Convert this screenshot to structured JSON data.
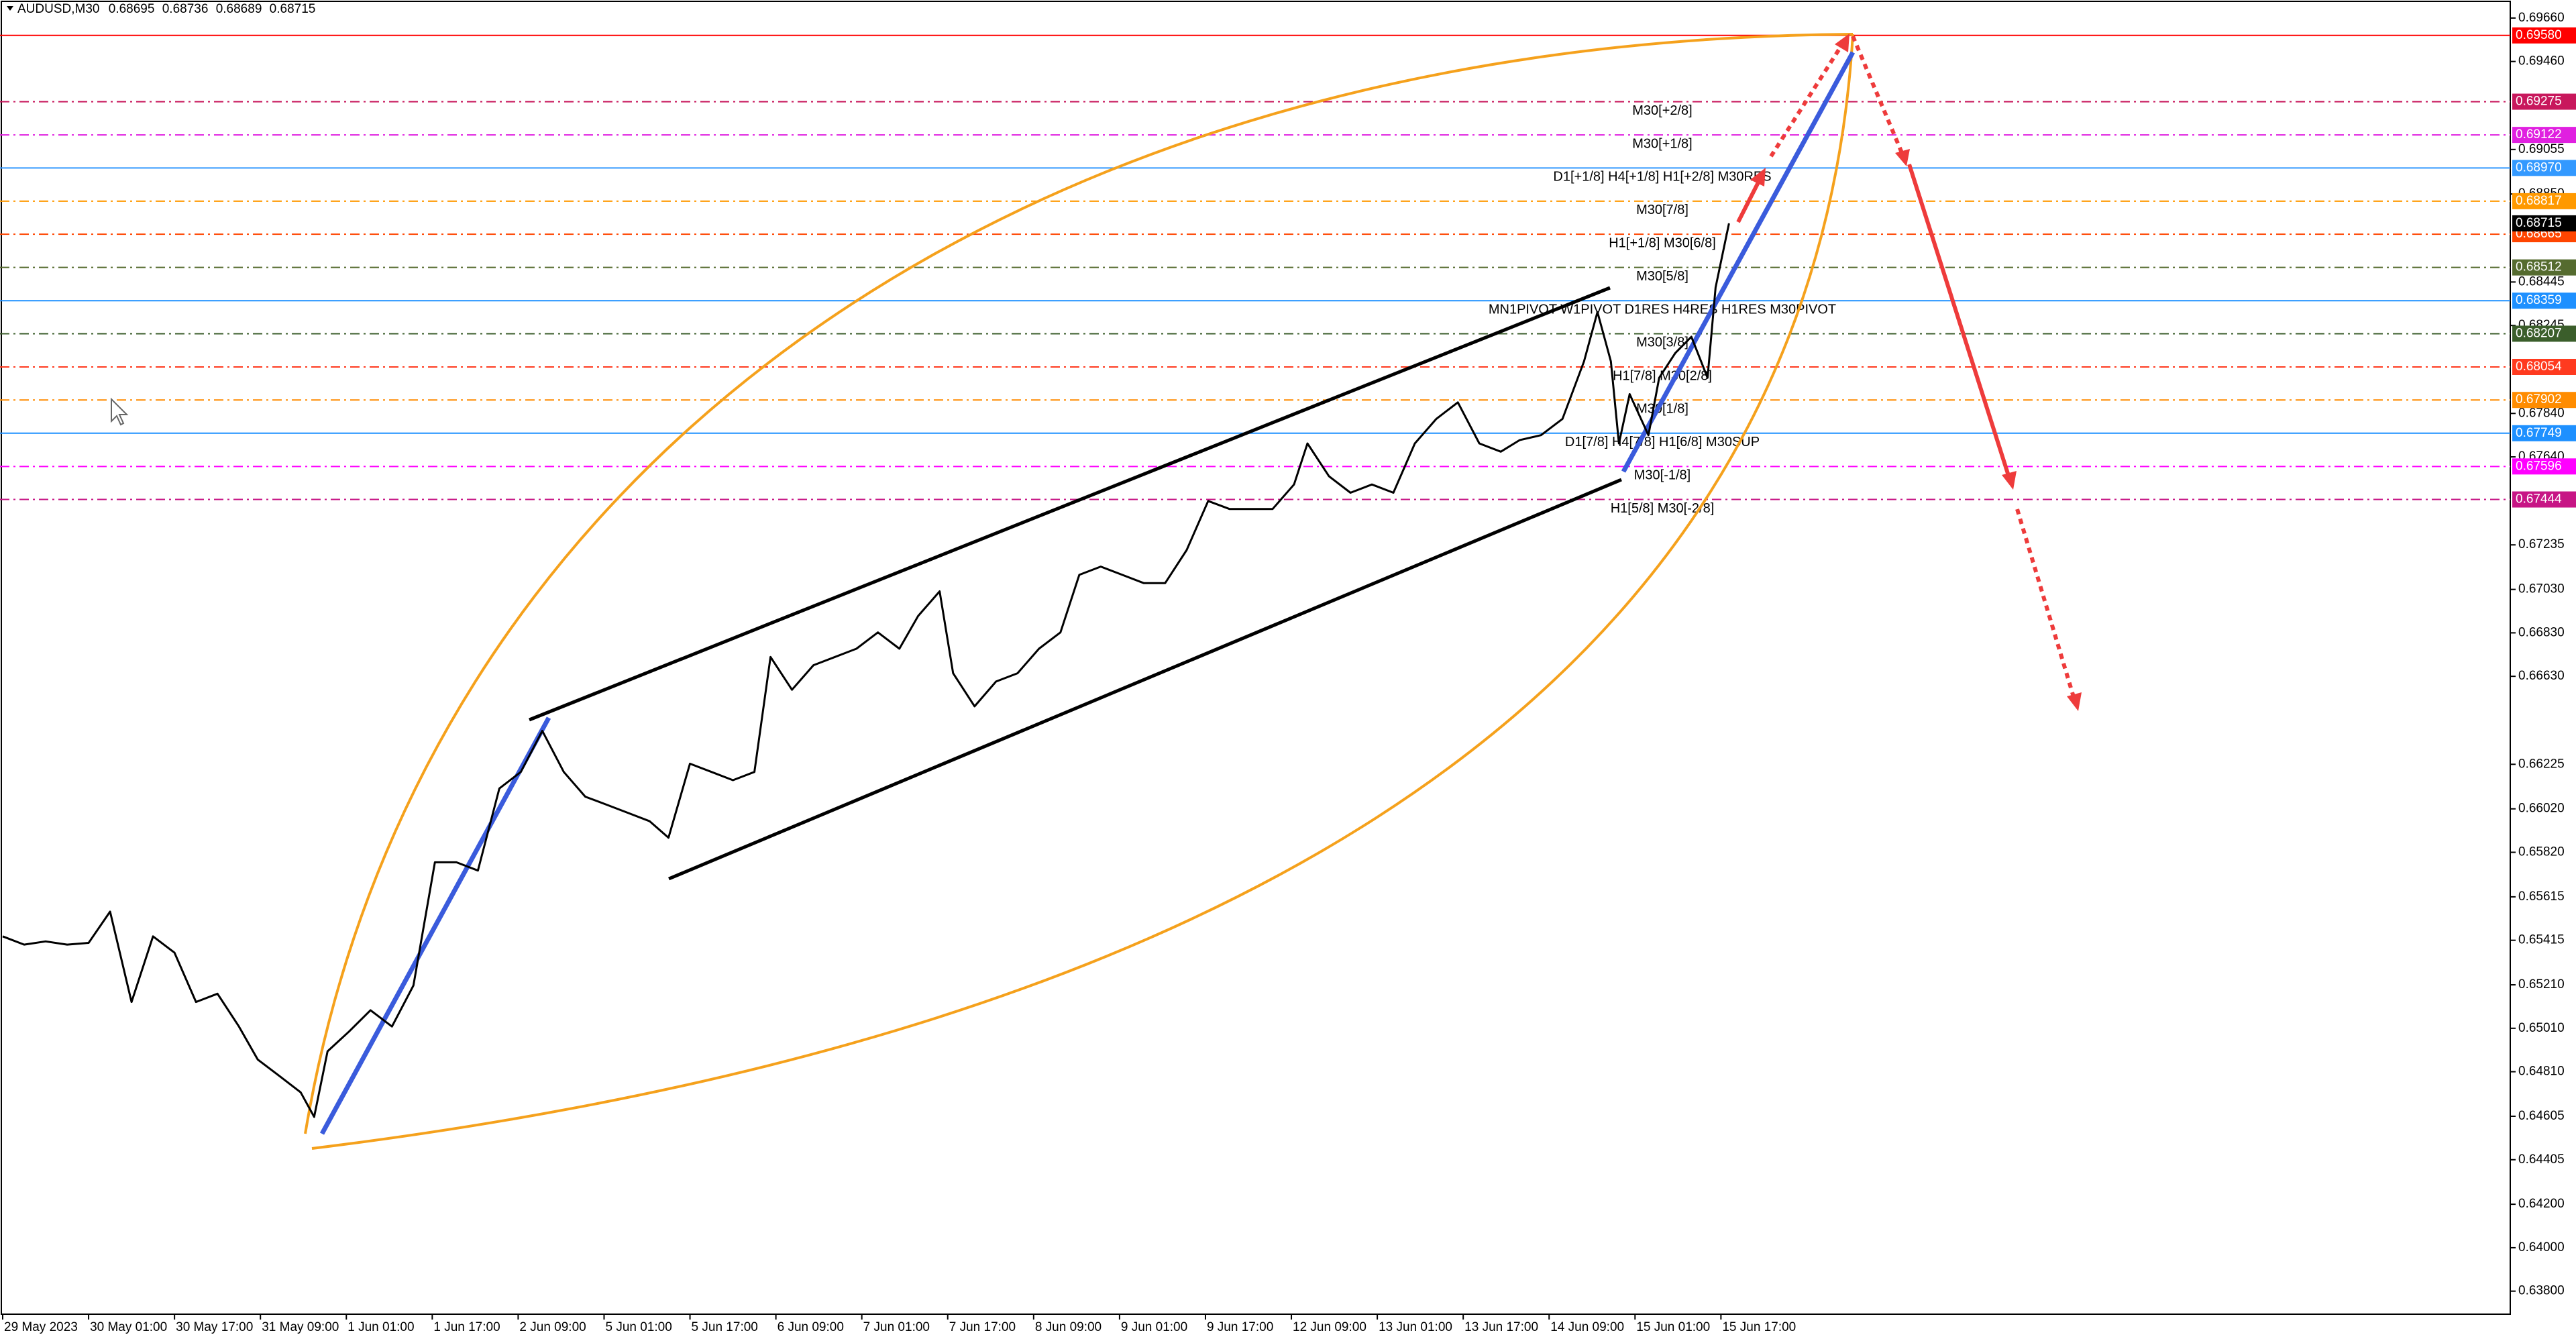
{
  "chart_data": {
    "type": "line",
    "symbol": "AUDUSD,M30",
    "quote": [
      0.68695,
      0.68736,
      0.68689,
      0.68715
    ],
    "color": "#000000",
    "x": [
      0,
      8,
      16,
      24,
      32,
      40,
      48,
      56,
      64,
      72,
      80,
      88,
      95,
      103,
      111,
      116,
      121,
      129,
      137,
      145,
      153,
      161,
      169,
      177,
      185,
      193,
      201,
      209,
      217,
      225,
      233,
      241,
      248,
      256,
      264,
      272,
      280,
      286,
      294,
      302,
      310,
      318,
      326,
      334,
      341,
      349,
      354,
      362,
      370,
      378,
      386,
      394,
      401,
      409,
      417,
      425,
      433,
      441,
      449,
      457,
      465,
      473,
      481,
      486,
      494,
      502,
      510,
      518,
      526,
      534,
      542,
      550,
      558,
      565,
      573,
      581,
      589,
      594,
      599,
      602,
      606,
      613,
      617,
      623,
      629,
      635,
      638,
      643
    ],
    "values": [
      0.65433,
      0.65395,
      0.6541,
      0.65395,
      0.65403,
      0.65547,
      0.65131,
      0.65433,
      0.65358,
      0.65131,
      0.65169,
      0.65018,
      0.64866,
      0.64791,
      0.64715,
      0.64602,
      0.64904,
      0.64995,
      0.65093,
      0.65018,
      0.65207,
      0.65774,
      0.65774,
      0.65736,
      0.66114,
      0.6619,
      0.66379,
      0.6619,
      0.66076,
      0.66039,
      0.66001,
      0.65963,
      0.65887,
      0.66228,
      0.6619,
      0.66152,
      0.6619,
      0.66719,
      0.66568,
      0.66681,
      0.66719,
      0.66757,
      0.66832,
      0.66757,
      0.66908,
      0.67021,
      0.66644,
      0.66492,
      0.66606,
      0.66644,
      0.66757,
      0.66832,
      0.67097,
      0.67135,
      0.67097,
      0.67059,
      0.67059,
      0.67211,
      0.67437,
      0.674,
      0.674,
      0.674,
      0.67513,
      0.67702,
      0.67551,
      0.67475,
      0.67513,
      0.67475,
      0.67702,
      0.67815,
      0.67891,
      0.67702,
      0.67664,
      0.67717,
      0.6774,
      0.67815,
      0.6808,
      0.68307,
      0.6808,
      0.67702,
      0.67929,
      0.6774,
      0.68004,
      0.68118,
      0.68193,
      0.68004,
      0.6842,
      0.68715
    ],
    "xlim": [
      -1,
      934
    ],
    "ylim": [
      0.63694,
      0.69743
    ],
    "xticks": [
      {
        "value": 0,
        "label": "29 May 2023"
      },
      {
        "value": 32,
        "label": "30 May 01:00"
      },
      {
        "value": 64,
        "label": "30 May 17:00"
      },
      {
        "value": 96,
        "label": "31 May 09:00"
      },
      {
        "value": 128,
        "label": "1 Jun 01:00"
      },
      {
        "value": 160,
        "label": "1 Jun 17:00"
      },
      {
        "value": 192,
        "label": "2 Jun 09:00"
      },
      {
        "value": 224,
        "label": "5 Jun 01:00"
      },
      {
        "value": 256,
        "label": "5 Jun 17:00"
      },
      {
        "value": 288,
        "label": "6 Jun 09:00"
      },
      {
        "value": 320,
        "label": "7 Jun 01:00"
      },
      {
        "value": 352,
        "label": "7 Jun 17:00"
      },
      {
        "value": 384,
        "label": "8 Jun 09:00"
      },
      {
        "value": 416,
        "label": "9 Jun 01:00"
      },
      {
        "value": 448,
        "label": "9 Jun 17:00"
      },
      {
        "value": 480,
        "label": "12 Jun 09:00"
      },
      {
        "value": 512,
        "label": "13 Jun 01:00"
      },
      {
        "value": 544,
        "label": "13 Jun 17:00"
      },
      {
        "value": 576,
        "label": "14 Jun 09:00"
      },
      {
        "value": 608,
        "label": "15 Jun 01:00"
      },
      {
        "value": 640,
        "label": "15 Jun 17:00"
      }
    ],
    "yticks": [
      {
        "value": 0.6966,
        "label": "0.69660"
      },
      {
        "value": 0.6946,
        "label": "0.69460"
      },
      0.69055,
      {
        "value": 0.6885,
        "label": "0.68850"
      },
      0.68445,
      0.68245,
      {
        "value": 0.6784,
        "label": "0.67840"
      },
      {
        "value": 0.6764,
        "label": "0.67640"
      },
      0.67235,
      {
        "value": 0.6703,
        "label": "0.67030"
      },
      {
        "value": 0.6683,
        "label": "0.66830"
      },
      {
        "value": 0.6663,
        "label": "0.66630"
      },
      0.66225,
      {
        "value": 0.6602,
        "label": "0.66020"
      },
      {
        "value": 0.6582,
        "label": "0.65820"
      },
      0.65615,
      0.65415,
      {
        "value": 0.6521,
        "label": "0.65210"
      },
      {
        "value": 0.6501,
        "label": "0.65010"
      },
      {
        "value": 0.6481,
        "label": "0.64810"
      },
      0.64605,
      0.64405,
      {
        "value": 0.642,
        "label": "0.64200"
      },
      {
        "value": 0.64,
        "label": "0.64000"
      },
      {
        "value": 0.638,
        "label": "0.63800"
      }
    ],
    "levels": [
      {
        "value": 0.6958,
        "label": "0.69580",
        "color": "#ff0000",
        "style": "solid"
      },
      {
        "value": 0.69275,
        "label": "0.69275",
        "text": "M30[+2/8]",
        "color": "#c8175c",
        "style": "dashdot"
      },
      {
        "value": 0.69122,
        "label": "0.69122",
        "text": "M30[+1/8]",
        "color": "#e020e0",
        "style": "dashdot"
      },
      {
        "value": 0.6897,
        "label": "0.68970",
        "text": "D1[+1/8] H4[+1/8] H1[+2/8] M30RES",
        "color": "#3399ff",
        "style": "solid"
      },
      {
        "value": 0.68817,
        "label": "0.68817",
        "text": "M30[7/8]",
        "color": "#ff9900",
        "style": "dashdot"
      },
      {
        "value": 0.68665,
        "label": "0.68665",
        "text": "H1[+1/8] M30[6/8]",
        "color": "#ff4500",
        "style": "dashdot"
      },
      {
        "value": 0.68512,
        "label": "0.68512",
        "text": "M30[5/8]",
        "color": "#556b2f",
        "style": "dashdot"
      },
      {
        "value": 0.68359,
        "label": "0.68359",
        "text": "MN1PIVOT W1PIVOT D1RES H4RES H1RES M30PIVOT",
        "color": "#1e90ff",
        "style": "solid"
      },
      {
        "value": 0.68207,
        "label": "0.68207",
        "text": "M30[3/8]",
        "color": "#3b5e2b",
        "style": "dashdot"
      },
      {
        "value": 0.68054,
        "label": "0.68054",
        "text": "H1[7/8] M30[2/8]",
        "color": "#ff3a1f",
        "style": "dashdot"
      },
      {
        "value": 0.67902,
        "label": "0.67902",
        "text": "M30[1/8]",
        "color": "#ff8c00",
        "style": "dashdot"
      },
      {
        "value": 0.67749,
        "label": "0.67749",
        "text": "D1[7/8] H4[7/8] H1[6/8] M30SUP",
        "color": "#1e90ff",
        "style": "solid"
      },
      {
        "value": 0.67596,
        "label": "0.67596",
        "text": "M30[-1/8]",
        "color": "#ff00ff",
        "style": "dashdot"
      },
      {
        "value": 0.67444,
        "label": "0.67444",
        "text": "H1[5/8] M30[-2/8]",
        "color": "#c71585",
        "style": "dashdot"
      }
    ]
  }
}
